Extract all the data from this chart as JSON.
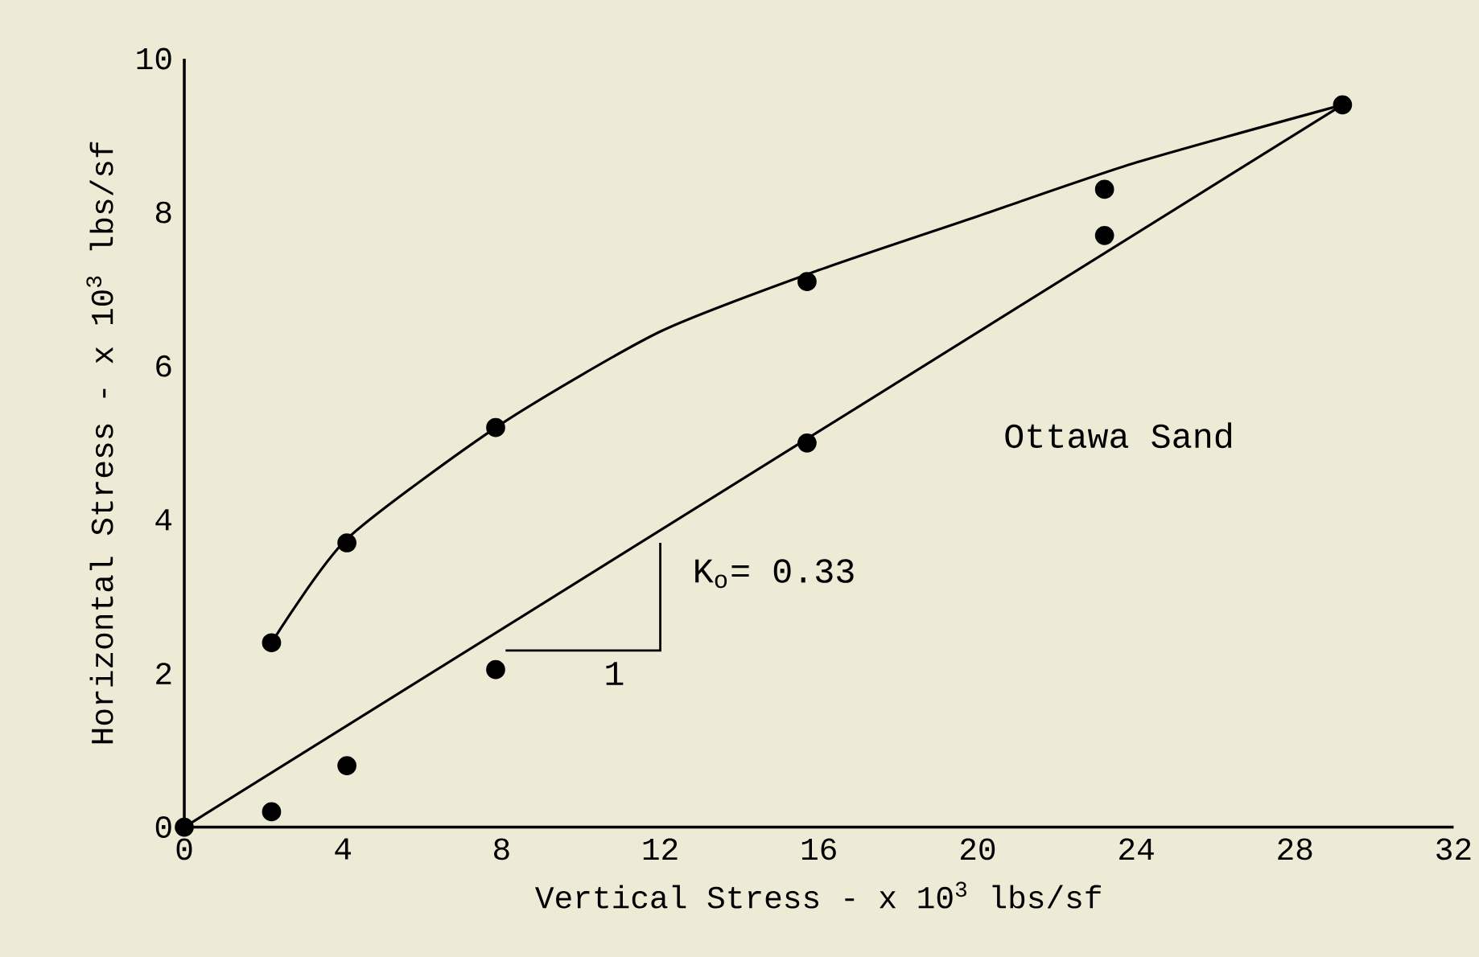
{
  "chart_data": {
    "type": "scatter",
    "xlabel": "Vertical Stress - x 10$^{3}$ lbs/sf",
    "ylabel": "Horizontal Stress - x 10$^{3}$ lbs/sf",
    "xlim": [
      0,
      32
    ],
    "ylim": [
      0,
      10
    ],
    "xticks": [
      0,
      4,
      8,
      12,
      16,
      20,
      24,
      28,
      32
    ],
    "yticks": [
      0,
      2,
      4,
      6,
      8,
      10
    ],
    "series": [
      {
        "type": "line",
        "color": "#000000",
        "x": [
          2.2,
          4.1,
          8,
          12,
          16,
          20,
          24,
          29.2
        ],
        "values": [
          2.4,
          3.75,
          5.25,
          6.45,
          7.25,
          7.95,
          8.65,
          9.4
        ],
        "marker": "none"
      },
      {
        "type": "line",
        "color": "#000000",
        "x": [
          0,
          29.2
        ],
        "values": [
          0,
          9.4
        ],
        "marker": "none"
      },
      {
        "marker": "circle",
        "color": "#000000",
        "x": [
          2.2,
          4.1,
          7.85,
          15.7,
          23.2,
          23.2,
          29.2
        ],
        "values": [
          2.4,
          3.7,
          5.2,
          7.1,
          8.3,
          7.7,
          9.4
        ]
      },
      {
        "marker": "circle",
        "color": "#000000",
        "x": [
          0,
          2.2,
          4.1,
          7.85,
          15.7
        ],
        "values": [
          0,
          0.2,
          0.8,
          2.05,
          5.0
        ]
      }
    ],
    "annotations": [
      "K$_{o}$= 0.33",
      "1",
      "Ottawa Sand"
    ]
  }
}
